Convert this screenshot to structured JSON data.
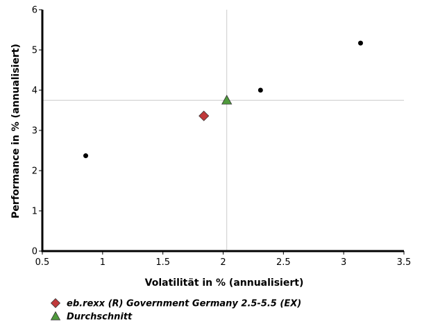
{
  "chart_data": {
    "type": "scatter",
    "xlabel": "Volatilität in % (annualisiert)",
    "ylabel": "Performance in % (annualisiert)",
    "xlim": [
      0.5,
      3.5
    ],
    "ylim": [
      0,
      6
    ],
    "x_ticks": [
      "0.5",
      "1",
      "1.5",
      "2",
      "2.5",
      "3",
      "3.5"
    ],
    "y_ticks": [
      "0",
      "1",
      "2",
      "3",
      "4",
      "5",
      "6"
    ],
    "grid": false,
    "reference_lines": {
      "x": 2.03,
      "y": 3.75
    },
    "other_points": [
      {
        "x": 0.86,
        "y": 2.37
      },
      {
        "x": 2.31,
        "y": 4.0
      },
      {
        "x": 3.14,
        "y": 5.17
      }
    ],
    "series": [
      {
        "name": "eb.rexx (R) Government Germany 2.5-5.5 (EX)",
        "marker": "diamond",
        "color": "#c0393b",
        "x": 1.84,
        "y": 3.36
      },
      {
        "name": "Durchschnitt",
        "marker": "triangle",
        "color": "#4f9a3c",
        "x": 2.03,
        "y": 3.75
      }
    ],
    "legend_position": "bottom-left"
  }
}
